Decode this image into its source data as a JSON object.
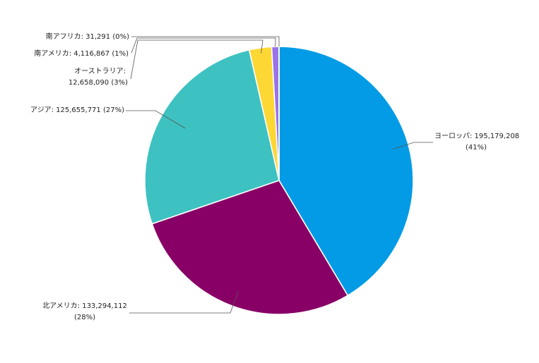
{
  "chart_data": {
    "type": "pie",
    "slices": [
      {
        "label": "ヨーロッパ",
        "value": 195179208,
        "value_text": "195,179,208",
        "percent_text": "(41%)",
        "color": "#039BE5"
      },
      {
        "label": "北アメリカ",
        "value": 133294112,
        "value_text": "133,294,112",
        "percent_text": "(28%)",
        "color": "#880066"
      },
      {
        "label": "アジア",
        "value": 125655771,
        "value_text": "125,655,771",
        "percent_text": "(27%)",
        "color": "#3EC1C1"
      },
      {
        "label": "オーストラリア",
        "value": 12658090,
        "value_text": "12,658,090",
        "percent_text": "(3%)",
        "color": "#FDD835"
      },
      {
        "label": "南アメリカ",
        "value": 4116867,
        "value_text": "4,116,867",
        "percent_text": "(1%)",
        "color": "#9B72E8"
      },
      {
        "label": "南アフリカ",
        "value": 31291,
        "value_text": "31,291",
        "percent_text": "(0%)",
        "color": "#4CAF50"
      }
    ],
    "start_angle_deg": 0,
    "direction": "clockwise",
    "legend": "none",
    "data_labels": "outside-with-leader-lines"
  }
}
